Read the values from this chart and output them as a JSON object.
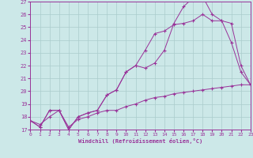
{
  "xlabel": "Windchill (Refroidissement éolien,°C)",
  "bg_color": "#cce8e8",
  "grid_color": "#aacccc",
  "line_color": "#993399",
  "x_min": 0,
  "x_max": 23,
  "y_min": 17,
  "y_max": 27,
  "line1_x": [
    0,
    1,
    2,
    3,
    4,
    5,
    6,
    7,
    8,
    9,
    10,
    11,
    12,
    13,
    14,
    15,
    16,
    17,
    18,
    19,
    20,
    21,
    22,
    23
  ],
  "line1_y": [
    17.7,
    17.2,
    18.5,
    18.5,
    17.0,
    18.0,
    18.3,
    18.5,
    19.7,
    20.1,
    21.5,
    22.0,
    21.8,
    22.2,
    23.2,
    25.3,
    26.6,
    27.3,
    27.4,
    26.0,
    25.5,
    23.8,
    21.5,
    20.5
  ],
  "line2_x": [
    0,
    1,
    2,
    3,
    4,
    5,
    6,
    7,
    8,
    9,
    10,
    11,
    12,
    13,
    14,
    15,
    16,
    17,
    18,
    19,
    20,
    21,
    22,
    23
  ],
  "line2_y": [
    17.7,
    17.2,
    18.5,
    18.5,
    17.0,
    18.0,
    18.3,
    18.5,
    19.7,
    20.1,
    21.5,
    22.0,
    23.2,
    24.5,
    24.7,
    25.2,
    25.3,
    25.5,
    26.0,
    25.5,
    25.5,
    25.3,
    22.0,
    20.5
  ],
  "line3_x": [
    0,
    1,
    2,
    3,
    4,
    5,
    6,
    7,
    8,
    9,
    10,
    11,
    12,
    13,
    14,
    15,
    16,
    17,
    18,
    19,
    20,
    21,
    22,
    23
  ],
  "line3_y": [
    17.7,
    17.4,
    18.0,
    18.5,
    17.2,
    17.8,
    18.0,
    18.3,
    18.5,
    18.5,
    18.8,
    19.0,
    19.3,
    19.5,
    19.6,
    19.8,
    19.9,
    20.0,
    20.1,
    20.2,
    20.3,
    20.4,
    20.5,
    20.5
  ],
  "yticks": [
    17,
    18,
    19,
    20,
    21,
    22,
    23,
    24,
    25,
    26,
    27
  ],
  "xticks": [
    0,
    1,
    2,
    3,
    4,
    5,
    6,
    7,
    8,
    9,
    10,
    11,
    12,
    13,
    14,
    15,
    16,
    17,
    18,
    19,
    20,
    21,
    22,
    23
  ]
}
